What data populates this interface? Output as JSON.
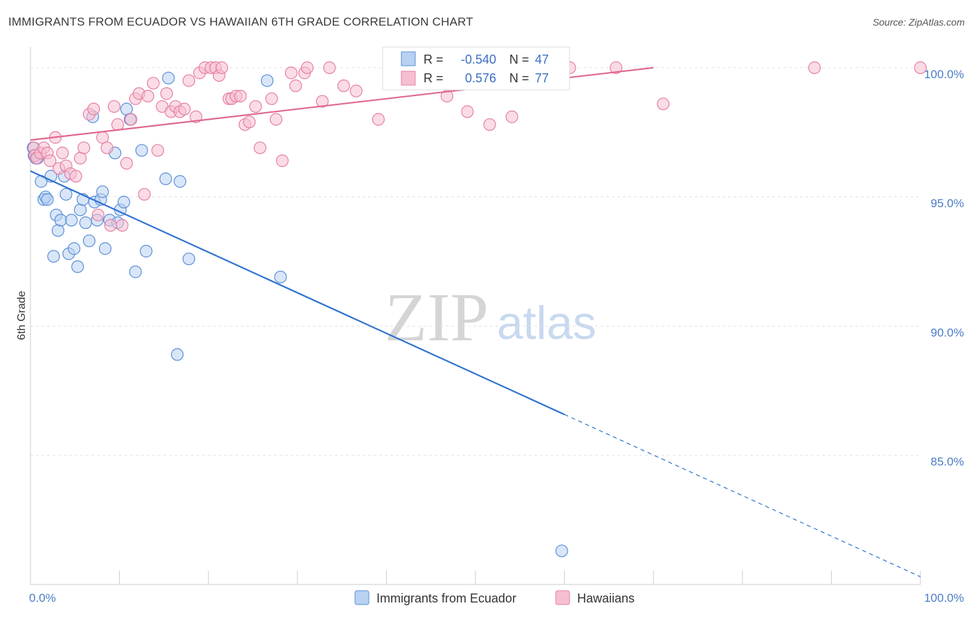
{
  "title": "IMMIGRANTS FROM ECUADOR VS HAWAIIAN 6TH GRADE CORRELATION CHART",
  "source": "Source: ZipAtlas.com",
  "watermark": {
    "zip": "ZIP",
    "atlas": "atlas"
  },
  "colors": {
    "blue_fill": "#b9d1f2",
    "blue_stroke": "#5b8fd6",
    "blue_line": "#2f72d0",
    "pink_fill": "#f6bfd1",
    "pink_stroke": "#e67fa3",
    "pink_line": "#e0688f",
    "grid": "#e3e3e3",
    "tick_text": "#4a7cc4"
  },
  "legend_box": {
    "row1": {
      "r_label": "R =",
      "r_value": "-0.540",
      "n_label": "N =",
      "n_value": "47"
    },
    "row2": {
      "r_label": "R =",
      "r_value": "0.576",
      "n_label": "N =",
      "n_value": "77"
    }
  },
  "chart_data": {
    "type": "scatter",
    "title": "IMMIGRANTS FROM ECUADOR VS HAWAIIAN 6TH GRADE CORRELATION CHART",
    "xlabel": "",
    "ylabel": "6th Grade",
    "xlim": [
      0,
      100
    ],
    "ylim": [
      80.0,
      100.8
    ],
    "x_tick_labels": [
      {
        "value": 0,
        "label": "0.0%"
      },
      {
        "value": 100,
        "label": "100.0%"
      }
    ],
    "y_ticks": [
      {
        "value": 85,
        "label": "85.0%"
      },
      {
        "value": 90,
        "label": "90.0%"
      },
      {
        "value": 95,
        "label": "95.0%"
      },
      {
        "value": 100,
        "label": "100.0%"
      }
    ],
    "grid": true,
    "legend_position": "bottom-center",
    "series": [
      {
        "name": "Immigrants from Ecuador",
        "color": "#b9d1f2",
        "r": -0.54,
        "n": 47,
        "trend": {
          "x0": 0,
          "y0": 96.0,
          "x1": 100,
          "y1": 80.3,
          "solid_until_x": 60
        },
        "points": [
          [
            0.3,
            96.9
          ],
          [
            0.4,
            96.6
          ],
          [
            0.6,
            96.5
          ],
          [
            0.8,
            96.5
          ],
          [
            1.2,
            95.6
          ],
          [
            1.5,
            94.9
          ],
          [
            1.7,
            95.0
          ],
          [
            1.9,
            94.9
          ],
          [
            2.3,
            95.8
          ],
          [
            2.6,
            92.7
          ],
          [
            2.9,
            94.3
          ],
          [
            3.1,
            93.7
          ],
          [
            3.4,
            94.1
          ],
          [
            3.8,
            95.8
          ],
          [
            4.0,
            95.1
          ],
          [
            4.3,
            92.8
          ],
          [
            4.6,
            94.1
          ],
          [
            4.9,
            93.0
          ],
          [
            5.3,
            92.3
          ],
          [
            5.6,
            94.5
          ],
          [
            5.9,
            94.9
          ],
          [
            6.2,
            94.0
          ],
          [
            6.6,
            93.3
          ],
          [
            7.0,
            98.1
          ],
          [
            7.2,
            94.8
          ],
          [
            7.5,
            94.1
          ],
          [
            7.9,
            94.9
          ],
          [
            8.1,
            95.2
          ],
          [
            8.4,
            93.0
          ],
          [
            8.9,
            94.1
          ],
          [
            9.5,
            96.7
          ],
          [
            9.8,
            94.0
          ],
          [
            10.1,
            94.5
          ],
          [
            10.5,
            94.8
          ],
          [
            10.8,
            98.4
          ],
          [
            11.2,
            98.0
          ],
          [
            11.8,
            92.1
          ],
          [
            12.5,
            96.8
          ],
          [
            13.0,
            92.9
          ],
          [
            15.2,
            95.7
          ],
          [
            15.5,
            99.6
          ],
          [
            16.5,
            88.9
          ],
          [
            16.8,
            95.6
          ],
          [
            17.8,
            92.6
          ],
          [
            26.6,
            99.5
          ],
          [
            28.1,
            91.9
          ],
          [
            59.7,
            81.3
          ]
        ]
      },
      {
        "name": "Hawaiians",
        "color": "#f6bfd1",
        "r": 0.576,
        "n": 77,
        "trend": {
          "x0": 0,
          "y0": 97.2,
          "x1": 70,
          "y1": 100.0,
          "solid_until_x": 70
        },
        "points": [
          [
            0.4,
            96.9
          ],
          [
            0.5,
            96.6
          ],
          [
            0.7,
            96.5
          ],
          [
            1.1,
            96.7
          ],
          [
            1.5,
            96.9
          ],
          [
            1.9,
            96.7
          ],
          [
            2.2,
            96.4
          ],
          [
            2.8,
            97.3
          ],
          [
            3.2,
            96.1
          ],
          [
            3.6,
            96.7
          ],
          [
            4.0,
            96.2
          ],
          [
            4.5,
            95.9
          ],
          [
            5.1,
            95.8
          ],
          [
            5.6,
            96.5
          ],
          [
            6.0,
            96.9
          ],
          [
            6.6,
            98.2
          ],
          [
            7.1,
            98.4
          ],
          [
            7.6,
            94.3
          ],
          [
            8.1,
            97.3
          ],
          [
            8.6,
            96.9
          ],
          [
            9.0,
            93.9
          ],
          [
            9.4,
            98.5
          ],
          [
            9.8,
            97.8
          ],
          [
            10.3,
            93.9
          ],
          [
            10.8,
            96.3
          ],
          [
            11.3,
            98.0
          ],
          [
            11.8,
            98.8
          ],
          [
            12.2,
            99.0
          ],
          [
            12.8,
            95.1
          ],
          [
            13.2,
            98.9
          ],
          [
            13.8,
            99.4
          ],
          [
            14.3,
            96.8
          ],
          [
            14.8,
            98.5
          ],
          [
            15.3,
            99.0
          ],
          [
            15.8,
            98.3
          ],
          [
            16.3,
            98.5
          ],
          [
            16.8,
            98.3
          ],
          [
            17.3,
            98.4
          ],
          [
            17.8,
            99.5
          ],
          [
            18.6,
            98.1
          ],
          [
            19.0,
            99.8
          ],
          [
            19.6,
            100.0
          ],
          [
            20.3,
            100.0
          ],
          [
            20.8,
            100.0
          ],
          [
            21.2,
            99.7
          ],
          [
            21.5,
            100.0
          ],
          [
            22.3,
            98.8
          ],
          [
            22.6,
            98.8
          ],
          [
            23.1,
            98.9
          ],
          [
            23.6,
            98.9
          ],
          [
            24.1,
            97.8
          ],
          [
            24.6,
            97.9
          ],
          [
            25.3,
            98.5
          ],
          [
            25.8,
            96.9
          ],
          [
            27.1,
            98.8
          ],
          [
            27.6,
            98.0
          ],
          [
            28.3,
            96.4
          ],
          [
            29.3,
            99.8
          ],
          [
            29.8,
            99.3
          ],
          [
            30.8,
            99.8
          ],
          [
            31.1,
            100.0
          ],
          [
            32.8,
            98.7
          ],
          [
            33.6,
            100.0
          ],
          [
            35.2,
            99.3
          ],
          [
            36.6,
            99.1
          ],
          [
            39.1,
            98.0
          ],
          [
            40.6,
            99.7
          ],
          [
            44.2,
            99.8
          ],
          [
            46.8,
            98.9
          ],
          [
            49.1,
            98.3
          ],
          [
            51.6,
            97.8
          ],
          [
            54.1,
            98.1
          ],
          [
            60.6,
            100.0
          ],
          [
            65.8,
            100.0
          ],
          [
            71.1,
            98.6
          ],
          [
            88.1,
            100.0
          ],
          [
            100.0,
            100.0
          ]
        ]
      }
    ]
  }
}
